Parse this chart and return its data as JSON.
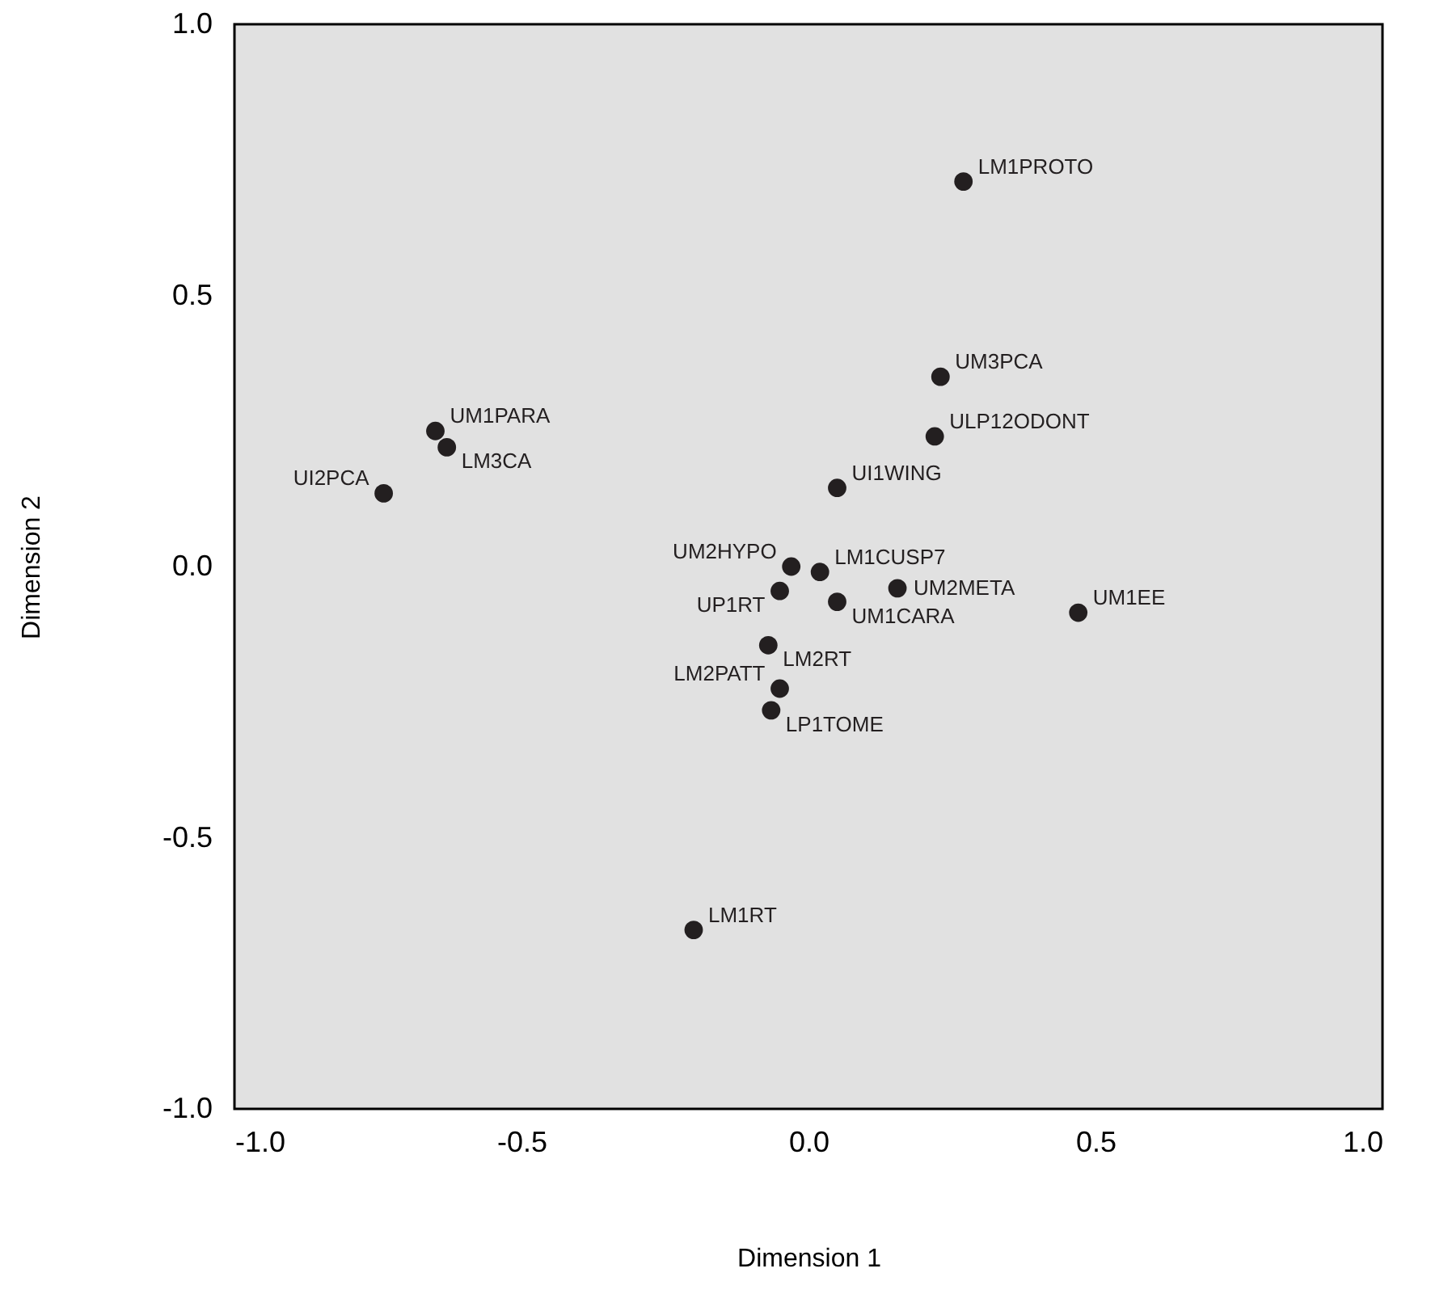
{
  "chart_data": {
    "type": "scatter",
    "xlabel": "Dimension 1",
    "ylabel": "Dimension 2",
    "marker": "circle",
    "xlim": [
      -1,
      1
    ],
    "ylim": [
      -1,
      1
    ],
    "xticks": [
      {
        "value": -1,
        "label": "-1.0"
      },
      {
        "value": -0.5,
        "label": "-0.5"
      },
      {
        "value": 0,
        "label": "0.0"
      },
      {
        "value": 0.5,
        "label": "0.5"
      },
      {
        "value": 1,
        "label": "1.0"
      }
    ],
    "yticks": [
      {
        "value": -1,
        "label": "-1.0"
      },
      {
        "value": -0.5,
        "label": "-0.5"
      },
      {
        "value": 0,
        "label": "0.0"
      },
      {
        "value": 0.5,
        "label": "0.5"
      },
      {
        "value": 1,
        "label": "1.0"
      }
    ],
    "series": [
      {
        "name": "LM1PROTO",
        "color": "#231f20",
        "x": [
          0.27
        ],
        "values": [
          0.71
        ]
      },
      {
        "name": "UM3PCA",
        "color": "#231f20",
        "x": [
          0.23
        ],
        "values": [
          0.35
        ]
      },
      {
        "name": "ULP12ODONT",
        "color": "#231f20",
        "x": [
          0.22
        ],
        "values": [
          0.24
        ]
      },
      {
        "name": "UI1WING",
        "color": "#231f20",
        "x": [
          0.05
        ],
        "values": [
          0.145
        ]
      },
      {
        "name": "UM1PARA",
        "color": "#231f20",
        "x": [
          -0.65
        ],
        "values": [
          0.25
        ]
      },
      {
        "name": "LM3CA",
        "color": "#231f20",
        "x": [
          -0.63
        ],
        "values": [
          0.22
        ]
      },
      {
        "name": "UI2PCA",
        "color": "#231f20",
        "x": [
          -0.74
        ],
        "values": [
          0.135
        ]
      },
      {
        "name": "UM2HYPO",
        "color": "#231f20",
        "x": [
          -0.03
        ],
        "values": [
          0.0
        ]
      },
      {
        "name": "LM1CUSP7",
        "color": "#231f20",
        "x": [
          0.02
        ],
        "values": [
          -0.01
        ]
      },
      {
        "name": "UP1RT",
        "color": "#231f20",
        "x": [
          -0.05
        ],
        "values": [
          -0.045
        ]
      },
      {
        "name": "UM1CARA",
        "color": "#231f20",
        "x": [
          0.05
        ],
        "values": [
          -0.065
        ]
      },
      {
        "name": "UM2META",
        "color": "#231f20",
        "x": [
          0.155
        ],
        "values": [
          -0.04
        ]
      },
      {
        "name": "UM1EE",
        "color": "#231f20",
        "x": [
          0.47
        ],
        "values": [
          -0.085
        ]
      },
      {
        "name": "LM2RT",
        "color": "#231f20",
        "x": [
          -0.07
        ],
        "values": [
          -0.145
        ]
      },
      {
        "name": "LM2PATT",
        "color": "#231f20",
        "x": [
          -0.05
        ],
        "values": [
          -0.225
        ]
      },
      {
        "name": "LP1TOME",
        "color": "#231f20",
        "x": [
          -0.065
        ],
        "values": [
          -0.265
        ]
      },
      {
        "name": "LM1RT",
        "color": "#231f20",
        "x": [
          -0.2
        ],
        "values": [
          -0.67
        ]
      }
    ]
  }
}
